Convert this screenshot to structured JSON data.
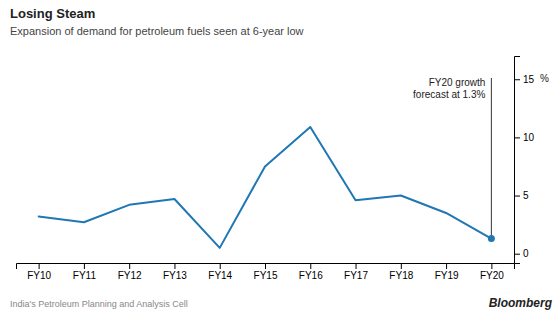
{
  "chart_data": {
    "type": "line",
    "title": "Losing Steam",
    "subtitle": "Expansion of demand for petroleum fuels seen at 6-year low",
    "categories": [
      "FY10",
      "FY11",
      "FY12",
      "FY13",
      "FY14",
      "FY15",
      "FY16",
      "FY17",
      "FY18",
      "FY19",
      "FY20"
    ],
    "values": [
      3.2,
      2.7,
      4.2,
      4.7,
      0.5,
      7.5,
      10.9,
      4.6,
      5.0,
      3.5,
      1.3
    ],
    "ylim": [
      -0.8,
      17.0
    ],
    "yticks": [
      0,
      5,
      10,
      15
    ],
    "ylabel": "%",
    "grid": false,
    "annotations": [
      {
        "text": "FY20 growth\nforecast at 1.3%",
        "category": "FY20",
        "value": 1.3
      }
    ],
    "source": "India's Petroleum Planning and Analysis Cell",
    "credit": "Bloomberg"
  }
}
